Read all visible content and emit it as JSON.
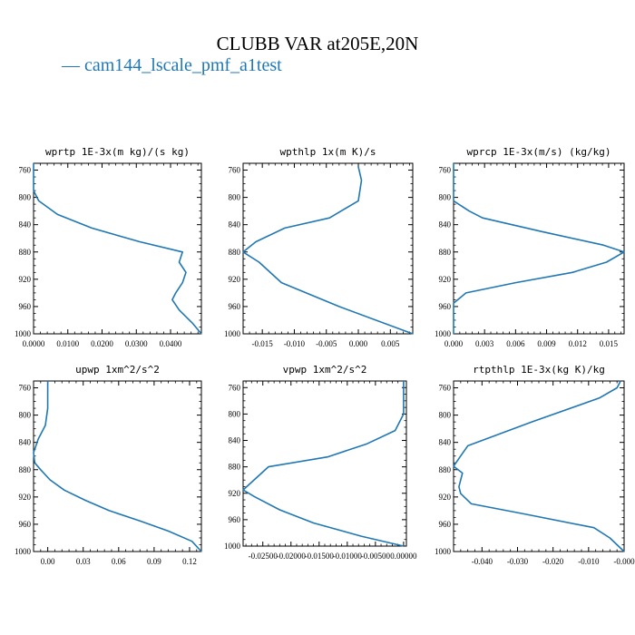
{
  "title": "CLUBB VAR at205E,20N",
  "legend": {
    "marker": "—",
    "label": "cam144_lscale_pmf_a1test",
    "color": "#1f77b4"
  },
  "chart_data": [
    {
      "type": "line",
      "title": "wprtp   1E-3x(m kg)/(s kg)",
      "xlim": [
        0.0,
        0.049
      ],
      "ylim": [
        1000,
        750
      ],
      "xticks": [
        0.0,
        0.01,
        0.02,
        0.03,
        0.04
      ],
      "xtick_labels": [
        "0.0000",
        "0.0100",
        "0.0200",
        "0.0300",
        "0.0400"
      ],
      "yticks": [
        760,
        800,
        840,
        880,
        920,
        960,
        1000
      ],
      "series": [
        {
          "x": [
            0.0,
            0.0,
            0.0,
            0.0015,
            0.007,
            0.017,
            0.031,
            0.0435,
            0.0425,
            0.0445,
            0.0435,
            0.0415,
            0.0405,
            0.0425,
            0.0465,
            0.049
          ],
          "y": [
            750,
            770,
            790,
            805,
            825,
            845,
            865,
            880,
            895,
            910,
            925,
            940,
            950,
            965,
            985,
            1000
          ]
        }
      ]
    },
    {
      "type": "line",
      "title": "wpthlp   1x(m K)/s",
      "xlim": [
        -0.018,
        0.0085
      ],
      "ylim": [
        1000,
        750
      ],
      "xticks": [
        -0.015,
        -0.01,
        -0.005,
        0.0,
        0.005
      ],
      "xtick_labels": [
        "-0.015",
        "-0.010",
        "-0.005",
        "0.000",
        "0.005"
      ],
      "yticks": [
        760,
        800,
        840,
        880,
        920,
        960,
        1000
      ],
      "series": [
        {
          "x": [
            0.0,
            0.0005,
            0.0,
            -0.0045,
            -0.0115,
            -0.016,
            -0.018,
            -0.0155,
            -0.012,
            -0.003,
            0.0085
          ],
          "y": [
            755,
            775,
            805,
            830,
            845,
            865,
            880,
            895,
            925,
            960,
            1000
          ]
        }
      ]
    },
    {
      "type": "line",
      "title": "wprcp   1E-3x(m/s) (kg/kg)",
      "xlim": [
        0.0,
        0.0165
      ],
      "ylim": [
        1000,
        750
      ],
      "xticks": [
        0.0,
        0.003,
        0.006,
        0.009,
        0.012,
        0.015
      ],
      "xtick_labels": [
        "0.000",
        "0.003",
        "0.006",
        "0.009",
        "0.012",
        "0.015"
      ],
      "yticks": [
        760,
        800,
        840,
        880,
        920,
        960,
        1000
      ],
      "series": [
        {
          "x": [
            0.0,
            0.0,
            0.0,
            0.0015,
            0.0028,
            0.0085,
            0.0145,
            0.0165,
            0.0148,
            0.0115,
            0.006,
            0.0012,
            0.0,
            0.0
          ],
          "y": [
            750,
            790,
            805,
            820,
            830,
            850,
            870,
            880,
            895,
            910,
            925,
            940,
            955,
            1000
          ]
        }
      ]
    },
    {
      "type": "line",
      "title": "upwp   1xm^2/s^2",
      "xlim": [
        -0.012,
        0.13
      ],
      "ylim": [
        1000,
        750
      ],
      "xticks": [
        0.0,
        0.03,
        0.06,
        0.09,
        0.12
      ],
      "xtick_labels": [
        "0.00",
        "0.03",
        "0.06",
        "0.09",
        "0.12"
      ],
      "yticks": [
        760,
        800,
        840,
        880,
        920,
        960,
        1000
      ],
      "series": [
        {
          "x": [
            0.0,
            0.0,
            -0.002,
            -0.008,
            -0.012,
            -0.011,
            -0.006,
            0.002,
            0.014,
            0.032,
            0.052,
            0.078,
            0.102,
            0.122,
            0.13
          ],
          "y": [
            750,
            790,
            815,
            835,
            855,
            870,
            880,
            895,
            910,
            925,
            940,
            955,
            970,
            985,
            1000
          ]
        }
      ]
    },
    {
      "type": "line",
      "title": "vpwp   1xm^2/s^2",
      "xlim": [
        -0.0285,
        0.0005
      ],
      "ylim": [
        1000,
        750
      ],
      "xticks": [
        -0.025,
        -0.02,
        -0.015,
        -0.01,
        -0.005,
        0.0
      ],
      "xtick_labels": [
        "-0.02500",
        "-0.02000",
        "-0.01500",
        "-0.01000",
        "-0.00500",
        "0.00000"
      ],
      "yticks": [
        760,
        800,
        840,
        880,
        920,
        960,
        1000
      ],
      "series": [
        {
          "x": [
            0.0,
            0.0,
            -0.0015,
            -0.0065,
            -0.0135,
            -0.024,
            -0.0285,
            -0.0265,
            -0.022,
            -0.016,
            -0.0075,
            0.0
          ],
          "y": [
            750,
            800,
            825,
            845,
            865,
            880,
            915,
            925,
            945,
            965,
            985,
            1000
          ]
        }
      ]
    },
    {
      "type": "line",
      "title": "rtpthlp   1E-3x(kg K)/kg",
      "xlim": [
        -0.048,
        0.0
      ],
      "ylim": [
        1000,
        750
      ],
      "xticks": [
        -0.04,
        -0.03,
        -0.02,
        -0.01,
        0.0
      ],
      "xtick_labels": [
        "-0.040",
        "-0.030",
        "-0.020",
        "-0.010",
        "-0.000"
      ],
      "yticks": [
        760,
        800,
        840,
        880,
        920,
        960,
        1000
      ],
      "series": [
        {
          "x": [
            -0.001,
            -0.002,
            -0.007,
            -0.026,
            -0.044,
            -0.046,
            -0.048,
            -0.0455,
            -0.0465,
            -0.046,
            -0.043,
            -0.028,
            -0.0085,
            -0.004,
            0.0
          ],
          "y": [
            750,
            760,
            775,
            810,
            845,
            860,
            875,
            885,
            905,
            915,
            930,
            945,
            965,
            980,
            1000
          ]
        }
      ]
    }
  ]
}
